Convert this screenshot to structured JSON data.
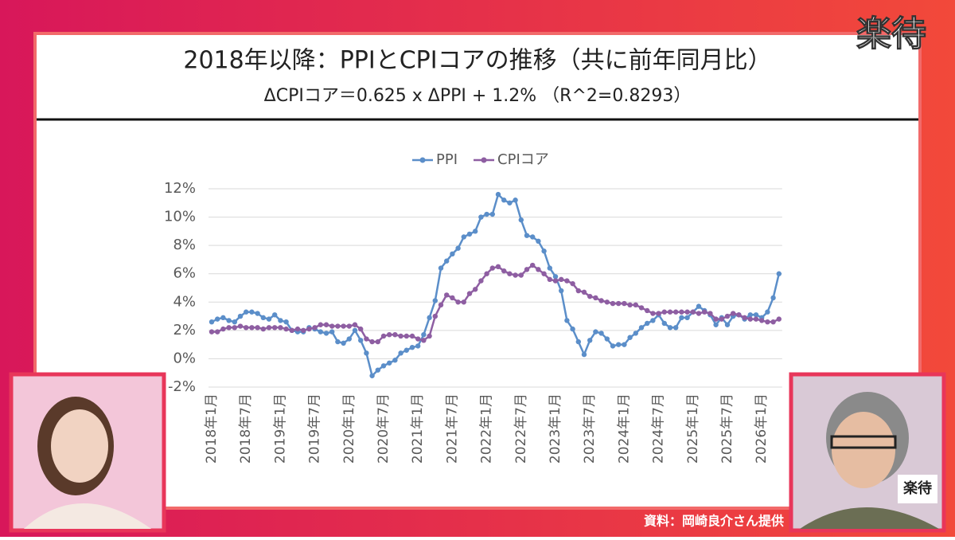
{
  "screen": {
    "logo": "楽待",
    "inset_logo": "楽待",
    "source": "資料：岡崎良介さん提供"
  },
  "chart_data": {
    "type": "line",
    "title": "2018年以降：PPIとCPIコアの推移（共に前年同月比）",
    "subtitle": "ΔCPIコア＝0.625 x ΔPPI + 1.2% （R^2=0.8293）",
    "categories": [
      "2018年1月",
      null,
      null,
      null,
      null,
      null,
      "2018年7月",
      null,
      null,
      null,
      null,
      null,
      "2019年1月",
      null,
      null,
      null,
      null,
      null,
      "2019年7月",
      null,
      null,
      null,
      null,
      null,
      "2020年1月",
      null,
      null,
      null,
      null,
      null,
      "2020年7月",
      null,
      null,
      null,
      null,
      null,
      "2021年1月",
      null,
      null,
      null,
      null,
      null,
      "2021年7月",
      null,
      null,
      null,
      null,
      null,
      "2022年1月",
      null,
      null,
      null,
      null,
      null,
      "2022年7月",
      null,
      null,
      null,
      null,
      null,
      "2023年1月",
      null,
      null,
      null,
      null,
      null,
      "2023年7月",
      null,
      null,
      null,
      null,
      null,
      "2024年1月",
      null,
      null,
      null,
      null,
      null,
      "2024年7月",
      null,
      null,
      null,
      null,
      null,
      "2025年1月",
      null,
      null,
      null,
      null,
      null,
      "2025年7月",
      null,
      null,
      null,
      null,
      null,
      "2026年1月",
      null,
      null,
      null
    ],
    "series": [
      {
        "name": "PPI",
        "color": "#5b8ec9",
        "values": [
          2.6,
          2.8,
          2.9,
          2.7,
          2.6,
          3.0,
          3.3,
          3.3,
          3.2,
          2.9,
          2.8,
          3.1,
          2.7,
          2.6,
          2.0,
          1.9,
          1.9,
          2.2,
          2.1,
          1.9,
          1.8,
          1.9,
          1.2,
          1.1,
          1.4,
          2.0,
          1.3,
          0.4,
          -1.2,
          -0.8,
          -0.5,
          -0.3,
          -0.1,
          0.4,
          0.6,
          0.8,
          0.9,
          1.7,
          2.9,
          4.1,
          6.4,
          6.9,
          7.4,
          7.8,
          8.6,
          8.8,
          9.0,
          10.0,
          10.2,
          10.2,
          11.6,
          11.2,
          11.0,
          11.2,
          9.8,
          8.7,
          8.6,
          8.3,
          7.6,
          6.4,
          5.8,
          4.8,
          2.7,
          2.1,
          1.2,
          0.3,
          1.3,
          1.9,
          1.8,
          1.4,
          0.9,
          1.0,
          1.0,
          1.5,
          1.8,
          2.2,
          2.5,
          2.7,
          3.1,
          2.5,
          2.2,
          2.2,
          2.9,
          2.9,
          3.3,
          3.7,
          3.4,
          3.1,
          2.4,
          2.9,
          2.4,
          3.0,
          3.1,
          2.8,
          3.1,
          3.1,
          2.9,
          3.3,
          4.3,
          6.0
        ]
      },
      {
        "name": "CPIコア",
        "color": "#8e5ea2",
        "values": [
          1.9,
          1.9,
          2.1,
          2.2,
          2.2,
          2.3,
          2.2,
          2.2,
          2.2,
          2.1,
          2.2,
          2.2,
          2.2,
          2.1,
          2.0,
          2.1,
          2.0,
          2.1,
          2.2,
          2.4,
          2.4,
          2.3,
          2.3,
          2.3,
          2.3,
          2.4,
          2.1,
          1.4,
          1.2,
          1.2,
          1.6,
          1.7,
          1.7,
          1.6,
          1.6,
          1.6,
          1.4,
          1.3,
          1.6,
          3.0,
          3.8,
          4.5,
          4.3,
          4.0,
          4.0,
          4.6,
          4.9,
          5.5,
          6.0,
          6.4,
          6.5,
          6.2,
          6.0,
          5.9,
          5.9,
          6.3,
          6.6,
          6.3,
          6.0,
          5.6,
          5.5,
          5.6,
          5.5,
          5.3,
          4.8,
          4.7,
          4.4,
          4.3,
          4.1,
          4.0,
          3.9,
          3.9,
          3.9,
          3.8,
          3.8,
          3.6,
          3.4,
          3.2,
          3.2,
          3.3,
          3.3,
          3.3,
          3.3,
          3.3,
          3.3,
          3.2,
          3.3,
          3.2,
          2.8,
          2.8,
          3.0,
          3.2,
          3.1,
          2.9,
          2.8,
          2.8,
          2.7,
          2.6,
          2.6,
          2.8
        ]
      }
    ],
    "ylim": [
      -2,
      12
    ],
    "yticks": [
      {
        "value": -2,
        "label": "-2%"
      },
      {
        "value": 0,
        "label": "0%"
      },
      {
        "value": 2,
        "label": "2%"
      },
      {
        "value": 4,
        "label": "4%"
      },
      {
        "value": 6,
        "label": "6%"
      },
      {
        "value": 8,
        "label": "8%"
      },
      {
        "value": 10,
        "label": "10%"
      },
      {
        "value": 12,
        "label": "12%"
      }
    ],
    "grid": true,
    "legend": "top"
  }
}
